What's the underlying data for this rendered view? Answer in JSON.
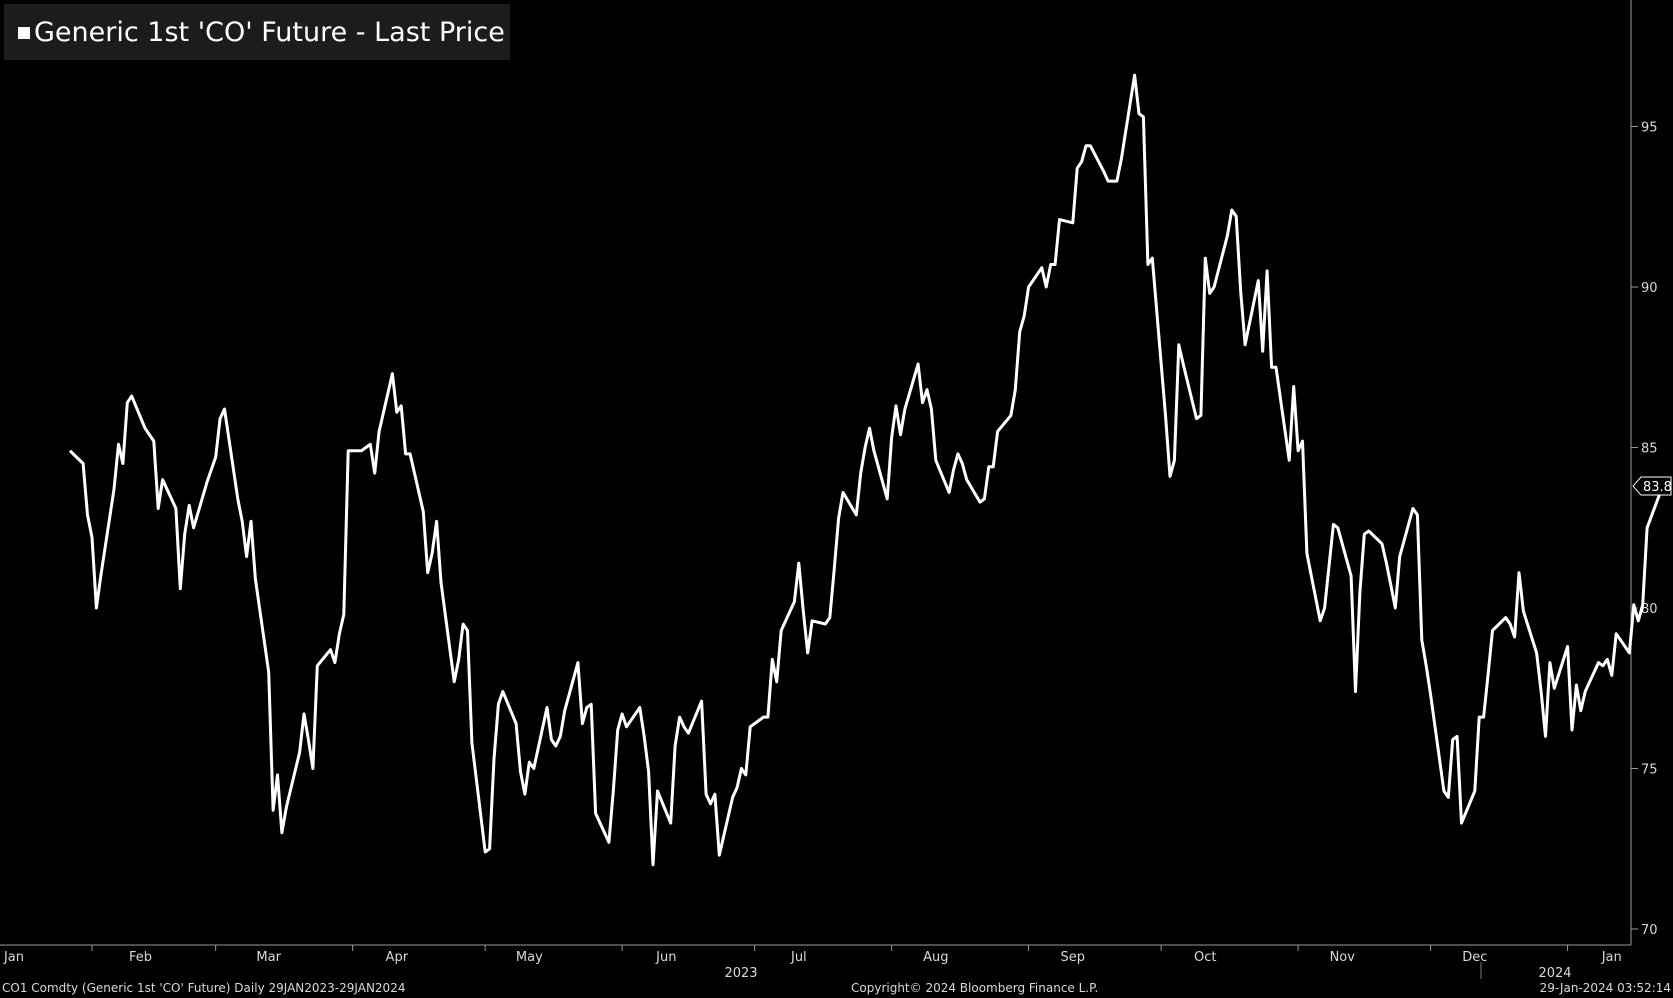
{
  "legend": {
    "label": "Generic 1st 'CO' Future - Last Price",
    "color": "#ffffff"
  },
  "footer": {
    "left": "CO1 Comdty (Generic 1st 'CO' Future)  Daily 29JAN2023-29JAN2024",
    "center": "Copyright© 2024 Bloomberg Finance L.P.",
    "right": "29-Jan-2024 03:52:14"
  },
  "last_value_label": "83.82",
  "chart_data": {
    "type": "line",
    "title": "Generic 1st 'CO' Future - Last Price",
    "xlabel": "",
    "ylabel": "",
    "ylim": [
      69.5,
      98.5
    ],
    "y_ticks": [
      70,
      75,
      80,
      85,
      90,
      95
    ],
    "x_ticks": [
      "Jan",
      "Feb",
      "Mar",
      "Apr",
      "May",
      "Jun",
      "Jul",
      "Aug",
      "Sep",
      "Oct",
      "Nov",
      "Dec",
      "Jan"
    ],
    "year_labels": [
      "2023",
      "2024"
    ],
    "grid": false,
    "background": "#000000",
    "line_color": "#ffffff",
    "series": [
      {
        "name": "Generic 1st 'CO' Future - Last Price",
        "points": [
          [
            "2023-01-27",
            84.9
          ],
          [
            "2023-01-30",
            84.5
          ],
          [
            "2023-01-31",
            82.9
          ],
          [
            "2023-02-01",
            82.2
          ],
          [
            "2023-02-02",
            80.0
          ],
          [
            "2023-02-03",
            81.0
          ],
          [
            "2023-02-06",
            83.7
          ],
          [
            "2023-02-07",
            85.1
          ],
          [
            "2023-02-08",
            84.5
          ],
          [
            "2023-02-09",
            86.4
          ],
          [
            "2023-02-10",
            86.6
          ],
          [
            "2023-02-13",
            85.6
          ],
          [
            "2023-02-14",
            85.4
          ],
          [
            "2023-02-15",
            85.2
          ],
          [
            "2023-02-16",
            83.1
          ],
          [
            "2023-02-17",
            84.0
          ],
          [
            "2023-02-20",
            83.1
          ],
          [
            "2023-02-21",
            80.6
          ],
          [
            "2023-02-22",
            82.3
          ],
          [
            "2023-02-23",
            83.2
          ],
          [
            "2023-02-24",
            82.5
          ],
          [
            "2023-02-27",
            83.9
          ],
          [
            "2023-02-28",
            84.3
          ],
          [
            "2023-03-01",
            84.7
          ],
          [
            "2023-03-02",
            85.9
          ],
          [
            "2023-03-03",
            86.2
          ],
          [
            "2023-03-06",
            83.4
          ],
          [
            "2023-03-07",
            82.7
          ],
          [
            "2023-03-08",
            81.6
          ],
          [
            "2023-03-09",
            82.7
          ],
          [
            "2023-03-10",
            80.9
          ],
          [
            "2023-03-13",
            78.0
          ],
          [
            "2023-03-14",
            73.7
          ],
          [
            "2023-03-15",
            74.8
          ],
          [
            "2023-03-16",
            73.0
          ],
          [
            "2023-03-17",
            73.8
          ],
          [
            "2023-03-20",
            75.5
          ],
          [
            "2023-03-21",
            76.7
          ],
          [
            "2023-03-22",
            75.9
          ],
          [
            "2023-03-23",
            75.0
          ],
          [
            "2023-03-24",
            78.2
          ],
          [
            "2023-03-27",
            78.7
          ],
          [
            "2023-03-28",
            78.3
          ],
          [
            "2023-03-29",
            79.2
          ],
          [
            "2023-03-30",
            79.8
          ],
          [
            "2023-03-31",
            84.9
          ],
          [
            "2023-04-03",
            84.9
          ],
          [
            "2023-04-04",
            85.0
          ],
          [
            "2023-04-05",
            85.1
          ],
          [
            "2023-04-06",
            84.2
          ],
          [
            "2023-04-07",
            85.5
          ],
          [
            "2023-04-10",
            87.3
          ],
          [
            "2023-04-11",
            86.1
          ],
          [
            "2023-04-12",
            86.3
          ],
          [
            "2023-04-13",
            84.8
          ],
          [
            "2023-04-14",
            84.8
          ],
          [
            "2023-04-17",
            83.0
          ],
          [
            "2023-04-18",
            81.1
          ],
          [
            "2023-04-19",
            81.7
          ],
          [
            "2023-04-20",
            82.7
          ],
          [
            "2023-04-21",
            80.8
          ],
          [
            "2023-04-24",
            77.7
          ],
          [
            "2023-04-25",
            78.4
          ],
          [
            "2023-04-26",
            79.5
          ],
          [
            "2023-04-27",
            79.3
          ],
          [
            "2023-04-28",
            75.8
          ],
          [
            "2023-05-01",
            72.4
          ],
          [
            "2023-05-02",
            72.5
          ],
          [
            "2023-05-03",
            75.3
          ],
          [
            "2023-05-04",
            77.0
          ],
          [
            "2023-05-05",
            77.4
          ],
          [
            "2023-05-08",
            76.4
          ],
          [
            "2023-05-09",
            74.9
          ],
          [
            "2023-05-10",
            74.2
          ],
          [
            "2023-05-11",
            75.2
          ],
          [
            "2023-05-12",
            75.0
          ],
          [
            "2023-05-15",
            76.9
          ],
          [
            "2023-05-16",
            75.9
          ],
          [
            "2023-05-17",
            75.7
          ],
          [
            "2023-05-18",
            76.0
          ],
          [
            "2023-05-19",
            76.8
          ],
          [
            "2023-05-22",
            78.3
          ],
          [
            "2023-05-23",
            76.4
          ],
          [
            "2023-05-24",
            76.9
          ],
          [
            "2023-05-25",
            77.0
          ],
          [
            "2023-05-26",
            73.6
          ],
          [
            "2023-05-29",
            72.7
          ],
          [
            "2023-05-30",
            74.3
          ],
          [
            "2023-05-31",
            76.2
          ],
          [
            "2023-06-01",
            76.7
          ],
          [
            "2023-06-02",
            76.3
          ],
          [
            "2023-06-05",
            76.9
          ],
          [
            "2023-06-06",
            76.0
          ],
          [
            "2023-06-07",
            74.9
          ],
          [
            "2023-06-08",
            72.0
          ],
          [
            "2023-06-09",
            74.3
          ],
          [
            "2023-06-12",
            73.3
          ],
          [
            "2023-06-13",
            75.7
          ],
          [
            "2023-06-14",
            76.6
          ],
          [
            "2023-06-15",
            76.3
          ],
          [
            "2023-06-16",
            76.1
          ],
          [
            "2023-06-19",
            77.1
          ],
          [
            "2023-06-20",
            74.2
          ],
          [
            "2023-06-21",
            73.9
          ],
          [
            "2023-06-22",
            74.2
          ],
          [
            "2023-06-23",
            72.3
          ],
          [
            "2023-06-26",
            74.1
          ],
          [
            "2023-06-27",
            74.4
          ],
          [
            "2023-06-28",
            75.0
          ],
          [
            "2023-06-29",
            74.8
          ],
          [
            "2023-06-30",
            76.3
          ],
          [
            "2023-07-03",
            76.6
          ],
          [
            "2023-07-04",
            76.6
          ],
          [
            "2023-07-05",
            78.4
          ],
          [
            "2023-07-06",
            77.7
          ],
          [
            "2023-07-07",
            79.3
          ],
          [
            "2023-07-10",
            80.2
          ],
          [
            "2023-07-11",
            81.4
          ],
          [
            "2023-07-12",
            79.9
          ],
          [
            "2023-07-13",
            78.6
          ],
          [
            "2023-07-14",
            79.6
          ],
          [
            "2023-07-17",
            79.5
          ],
          [
            "2023-07-18",
            79.7
          ],
          [
            "2023-07-19",
            81.2
          ],
          [
            "2023-07-20",
            82.8
          ],
          [
            "2023-07-21",
            83.6
          ],
          [
            "2023-07-24",
            82.9
          ],
          [
            "2023-07-25",
            84.2
          ],
          [
            "2023-07-26",
            85.0
          ],
          [
            "2023-07-27",
            85.6
          ],
          [
            "2023-07-28",
            84.9
          ],
          [
            "2023-07-31",
            83.4
          ],
          [
            "2023-08-01",
            85.3
          ],
          [
            "2023-08-02",
            86.3
          ],
          [
            "2023-08-03",
            85.4
          ],
          [
            "2023-08-04",
            86.2
          ],
          [
            "2023-08-07",
            87.6
          ],
          [
            "2023-08-08",
            86.4
          ],
          [
            "2023-08-09",
            86.8
          ],
          [
            "2023-08-10",
            86.2
          ],
          [
            "2023-08-11",
            84.6
          ],
          [
            "2023-08-14",
            83.6
          ],
          [
            "2023-08-15",
            84.3
          ],
          [
            "2023-08-16",
            84.8
          ],
          [
            "2023-08-17",
            84.5
          ],
          [
            "2023-08-18",
            84.0
          ],
          [
            "2023-08-21",
            83.3
          ],
          [
            "2023-08-22",
            83.4
          ],
          [
            "2023-08-23",
            84.4
          ],
          [
            "2023-08-24",
            84.4
          ],
          [
            "2023-08-25",
            85.5
          ],
          [
            "2023-08-28",
            86.0
          ],
          [
            "2023-08-29",
            86.8
          ],
          [
            "2023-08-30",
            88.6
          ],
          [
            "2023-08-31",
            89.1
          ],
          [
            "2023-09-01",
            90.0
          ],
          [
            "2023-09-04",
            90.6
          ],
          [
            "2023-09-05",
            90.0
          ],
          [
            "2023-09-06",
            90.7
          ],
          [
            "2023-09-07",
            90.7
          ],
          [
            "2023-09-08",
            92.1
          ],
          [
            "2023-09-11",
            92.0
          ],
          [
            "2023-09-12",
            93.7
          ],
          [
            "2023-09-13",
            93.9
          ],
          [
            "2023-09-14",
            94.4
          ],
          [
            "2023-09-15",
            94.4
          ],
          [
            "2023-09-18",
            93.6
          ],
          [
            "2023-09-19",
            93.3
          ],
          [
            "2023-09-20",
            93.3
          ],
          [
            "2023-09-21",
            93.3
          ],
          [
            "2023-09-22",
            94.0
          ],
          [
            "2023-09-25",
            96.6
          ],
          [
            "2023-09-26",
            95.4
          ],
          [
            "2023-09-27",
            95.3
          ],
          [
            "2023-09-28",
            90.7
          ],
          [
            "2023-09-29",
            90.9
          ],
          [
            "2023-10-02",
            86.0
          ],
          [
            "2023-10-03",
            84.1
          ],
          [
            "2023-10-04",
            84.6
          ],
          [
            "2023-10-05",
            88.2
          ],
          [
            "2023-10-06",
            87.6
          ],
          [
            "2023-10-09",
            85.9
          ],
          [
            "2023-10-10",
            86.0
          ],
          [
            "2023-10-11",
            90.9
          ],
          [
            "2023-10-12",
            89.8
          ],
          [
            "2023-10-13",
            90.0
          ],
          [
            "2023-10-16",
            91.6
          ],
          [
            "2023-10-17",
            92.4
          ],
          [
            "2023-10-18",
            92.2
          ],
          [
            "2023-10-19",
            89.9
          ],
          [
            "2023-10-20",
            88.2
          ],
          [
            "2023-10-23",
            90.2
          ],
          [
            "2023-10-24",
            88.0
          ],
          [
            "2023-10-25",
            90.5
          ],
          [
            "2023-10-26",
            87.5
          ],
          [
            "2023-10-27",
            87.5
          ],
          [
            "2023-10-30",
            84.6
          ],
          [
            "2023-10-31",
            86.9
          ],
          [
            "2023-11-01",
            84.9
          ],
          [
            "2023-11-02",
            85.2
          ],
          [
            "2023-11-03",
            81.7
          ],
          [
            "2023-11-06",
            79.6
          ],
          [
            "2023-11-07",
            80.0
          ],
          [
            "2023-11-08",
            81.3
          ],
          [
            "2023-11-09",
            82.6
          ],
          [
            "2023-11-10",
            82.5
          ],
          [
            "2023-11-13",
            81.0
          ],
          [
            "2023-11-14",
            77.4
          ],
          [
            "2023-11-15",
            80.5
          ],
          [
            "2023-11-16",
            82.3
          ],
          [
            "2023-11-17",
            82.4
          ],
          [
            "2023-11-20",
            82.0
          ],
          [
            "2023-11-21",
            81.4
          ],
          [
            "2023-11-22",
            80.7
          ],
          [
            "2023-11-23",
            80.0
          ],
          [
            "2023-11-24",
            81.6
          ],
          [
            "2023-11-27",
            83.1
          ],
          [
            "2023-11-28",
            82.9
          ],
          [
            "2023-11-29",
            79.0
          ],
          [
            "2023-11-30",
            78.2
          ],
          [
            "2023-12-01",
            77.3
          ],
          [
            "2023-12-04",
            74.3
          ],
          [
            "2023-12-05",
            74.1
          ],
          [
            "2023-12-06",
            75.9
          ],
          [
            "2023-12-07",
            76.0
          ],
          [
            "2023-12-08",
            73.3
          ],
          [
            "2023-12-11",
            74.3
          ],
          [
            "2023-12-12",
            76.6
          ],
          [
            "2023-12-13",
            76.6
          ],
          [
            "2023-12-14",
            77.9
          ],
          [
            "2023-12-15",
            79.3
          ],
          [
            "2023-12-18",
            79.7
          ],
          [
            "2023-12-19",
            79.5
          ],
          [
            "2023-12-20",
            79.1
          ],
          [
            "2023-12-21",
            81.1
          ],
          [
            "2023-12-22",
            79.9
          ],
          [
            "2023-12-25",
            78.6
          ],
          [
            "2023-12-26",
            77.4
          ],
          [
            "2023-12-27",
            76.0
          ],
          [
            "2023-12-28",
            78.3
          ],
          [
            "2023-12-29",
            77.5
          ],
          [
            "2024-01-01",
            78.8
          ],
          [
            "2024-01-02",
            76.2
          ],
          [
            "2024-01-03",
            77.6
          ],
          [
            "2024-01-04",
            76.8
          ],
          [
            "2024-01-05",
            77.4
          ],
          [
            "2024-01-08",
            78.3
          ],
          [
            "2024-01-09",
            78.2
          ],
          [
            "2024-01-10",
            78.4
          ],
          [
            "2024-01-11",
            77.9
          ],
          [
            "2024-01-12",
            79.2
          ],
          [
            "2024-01-15",
            78.6
          ],
          [
            "2024-01-16",
            80.1
          ],
          [
            "2024-01-17",
            79.6
          ],
          [
            "2024-01-18",
            80.1
          ],
          [
            "2024-01-19",
            82.5
          ],
          [
            "2024-01-22",
            83.6
          ],
          [
            "2024-01-23",
            83.8
          ]
        ]
      }
    ]
  }
}
